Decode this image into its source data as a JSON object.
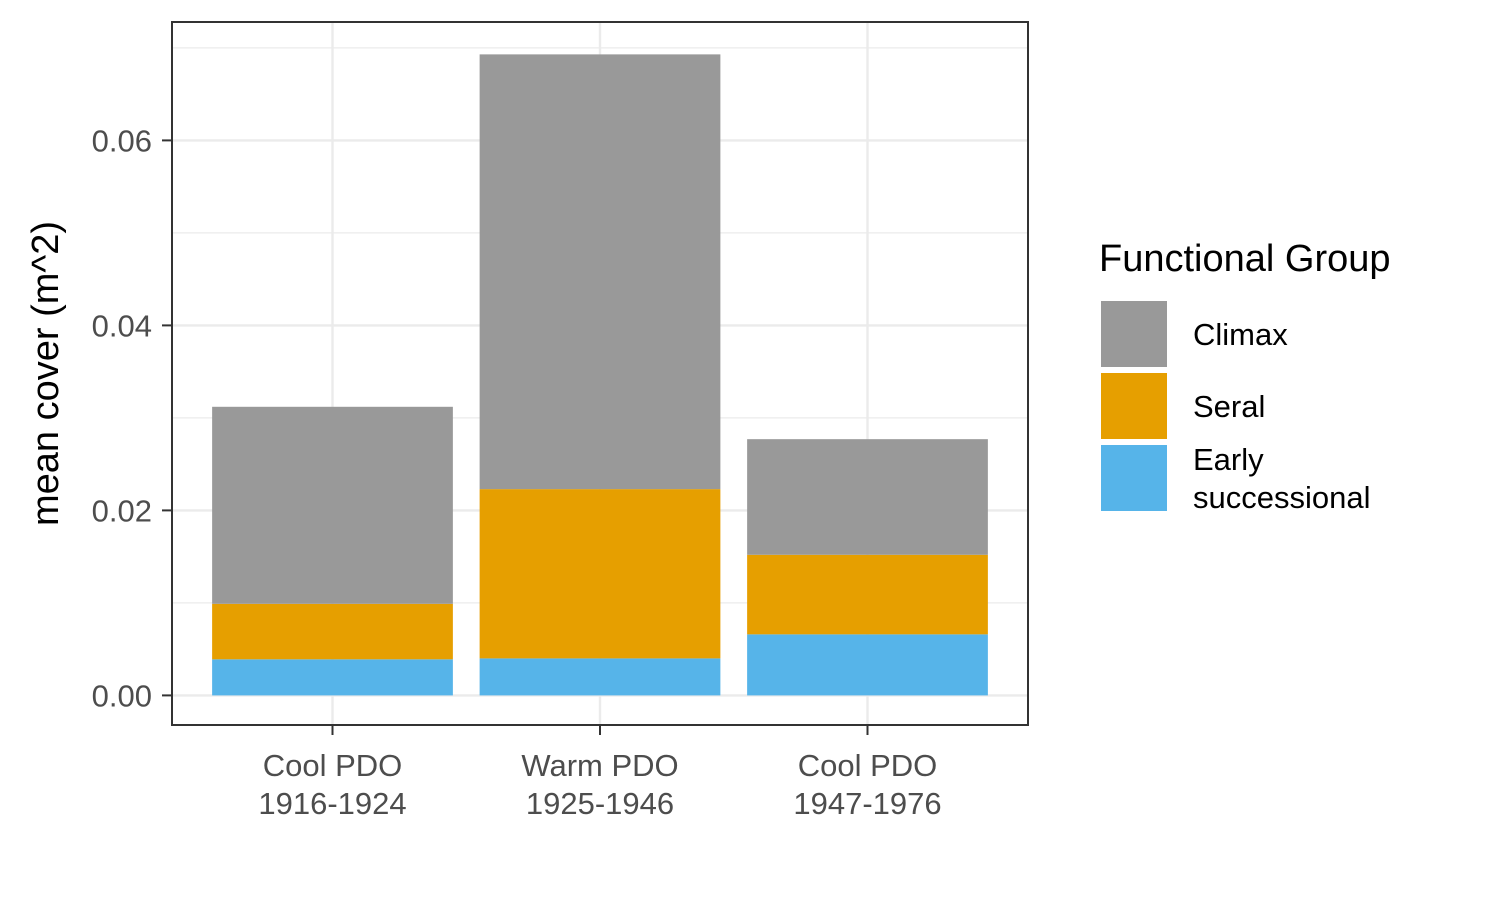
{
  "chart_data": {
    "type": "bar",
    "stacked": true,
    "title": "",
    "xlabel": "",
    "ylabel": "mean cover (m^2)",
    "ylim": [
      -0.0032,
      0.0728
    ],
    "yticks": [
      0.0,
      0.02,
      0.04,
      0.06
    ],
    "ytick_labels": [
      "0.00",
      "0.02",
      "0.04",
      "0.06"
    ],
    "categories": [
      [
        "Cool PDO",
        "1916-1924"
      ],
      [
        "Warm PDO",
        "1925-1946"
      ],
      [
        "Cool PDO",
        "1947-1976"
      ]
    ],
    "series": [
      {
        "name": "Early successional",
        "legend_lines": [
          "Early",
          "successional"
        ],
        "color": "#56B4E9",
        "values": [
          0.0039,
          0.004,
          0.0066
        ]
      },
      {
        "name": "Seral",
        "legend_lines": [
          "Seral"
        ],
        "color": "#E69F00",
        "values": [
          0.006,
          0.0183,
          0.0086
        ]
      },
      {
        "name": "Climax",
        "legend_lines": [
          "Climax"
        ],
        "color": "#999999",
        "values": [
          0.0213,
          0.047,
          0.0125
        ]
      }
    ],
    "legend": {
      "title": "Functional Group",
      "placement": "right",
      "order": [
        "Climax",
        "Seral",
        "Early successional"
      ]
    },
    "grid": true
  }
}
